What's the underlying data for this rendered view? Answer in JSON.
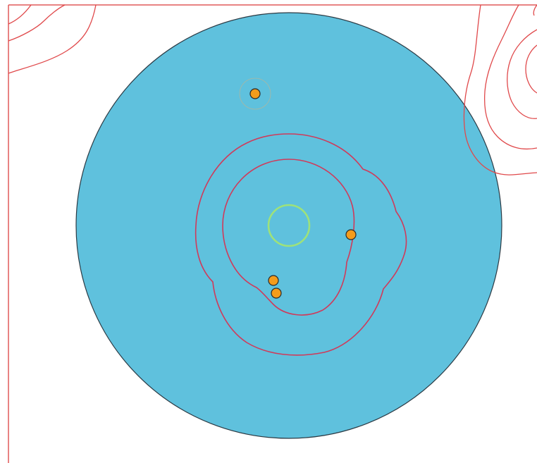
{
  "colors": {
    "background": "#ffffff",
    "frame_line": "#e05a5a",
    "disc_fill": "#5fc1dd",
    "disc_outline": "#2b3a44",
    "outer_contours": "#e0494b",
    "inner_contours": "#d03a5a",
    "center_ring": "#9ee27a",
    "marker_fill": "#f39c1c",
    "marker_outline": "#2a2a2a",
    "marker_halo": "#c8b48a"
  },
  "icons": {
    "marker": "orange-dot-marker",
    "center": "green-ring-marker"
  },
  "markers": [
    {
      "id": "marker-top"
    },
    {
      "id": "marker-right"
    },
    {
      "id": "marker-lower-left-a"
    },
    {
      "id": "marker-lower-left-b"
    }
  ]
}
